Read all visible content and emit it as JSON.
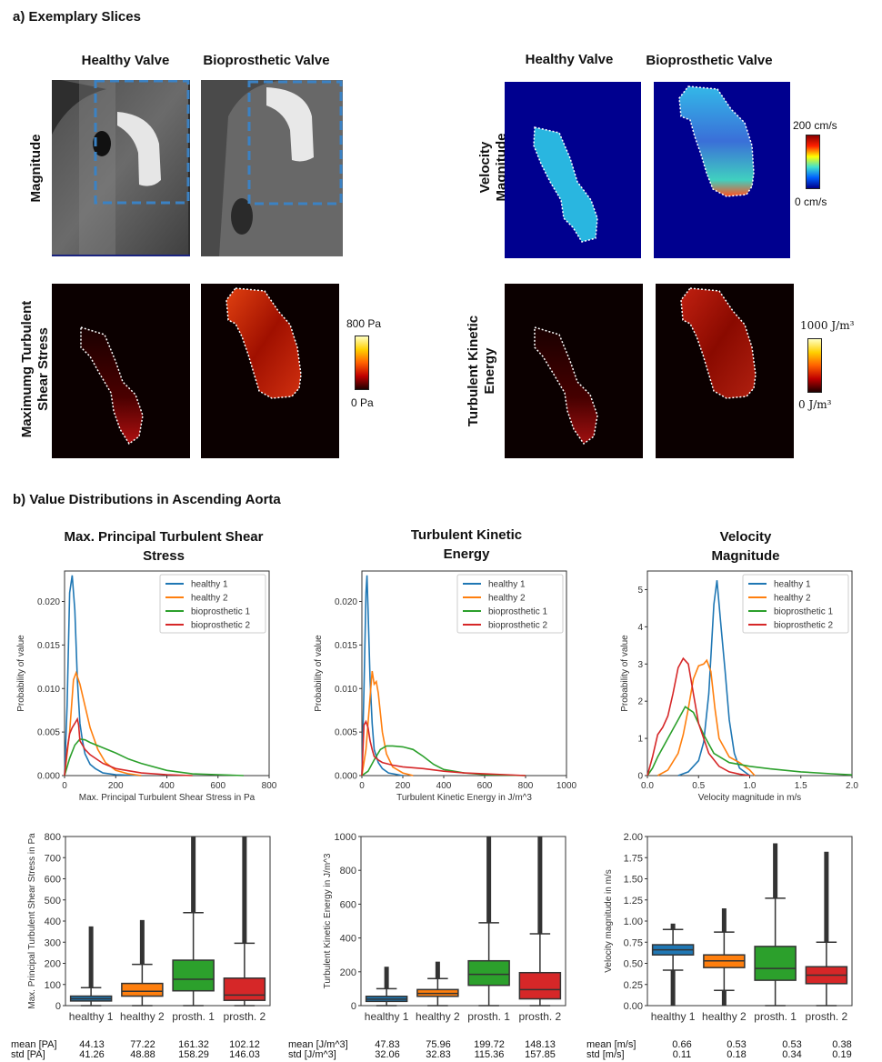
{
  "section_a": {
    "title": "a) Exemplary Slices",
    "col_healthy": "Healthy Valve",
    "col_bioprosthetic": "Bioprosthetic Valve",
    "row_magnitude": "Magnitude",
    "row_velocity": "Velocity Magnitude",
    "row_velocity_l1": "Velocity",
    "row_velocity_l2": "Magnitude",
    "row_shear_l1": "Maximumg  Turbulent",
    "row_shear_l2": "Shear Stress",
    "row_tke_l1": "Turbulent Kinetic",
    "row_tke_l2": "Energy",
    "cb_velocity_max": "200 cm/s",
    "cb_velocity_min": "0 cm/s",
    "cb_shear_max": "800 Pa",
    "cb_shear_min": "0 Pa",
    "cb_tke_max": "1000 J/m³",
    "cb_tke_min": "0 J/m³"
  },
  "section_b": {
    "title": "b) Value Distributions in Ascending Aorta"
  },
  "colors": {
    "healthy1": "#1f77b4",
    "healthy2": "#ff7f0e",
    "bioprosthetic1": "#2ca02c",
    "bioprosthetic2": "#d62728"
  },
  "chart_data": [
    {
      "type": "line",
      "title": "Max. Principal Turbulent Shear Stress",
      "xlabel": "Max. Principal Turbulent Shear Stress in Pa",
      "ylabel": "Probability of value",
      "xlim": [
        0,
        800
      ],
      "ylim": [
        0,
        0.0235
      ],
      "xticks": [
        0,
        200,
        400,
        600,
        800
      ],
      "yticks": [
        0.0,
        0.005,
        0.01,
        0.015,
        0.02
      ],
      "ytick_labels": [
        "0.000",
        "0.005",
        "0.010",
        "0.015",
        "0.020"
      ],
      "legend": "top-right",
      "series": [
        {
          "name": "healthy 1",
          "x": [
            0,
            10,
            20,
            30,
            40,
            50,
            60,
            70,
            80,
            100,
            120,
            150,
            200,
            300
          ],
          "y": [
            0.0,
            0.008,
            0.021,
            0.023,
            0.019,
            0.011,
            0.006,
            0.004,
            0.0025,
            0.0013,
            0.0008,
            0.0003,
            0.0001,
            0.0
          ]
        },
        {
          "name": "healthy 2",
          "x": [
            0,
            20,
            35,
            45,
            60,
            80,
            100,
            130,
            160,
            200,
            250,
            300
          ],
          "y": [
            0.0,
            0.005,
            0.011,
            0.0118,
            0.0105,
            0.008,
            0.0055,
            0.003,
            0.0015,
            0.0006,
            0.0002,
            0.0
          ]
        },
        {
          "name": "bioprosthetic 1",
          "x": [
            0,
            20,
            40,
            60,
            80,
            100,
            150,
            200,
            250,
            300,
            400,
            500,
            600,
            700
          ],
          "y": [
            0.0,
            0.002,
            0.0035,
            0.0042,
            0.0041,
            0.0038,
            0.0032,
            0.0026,
            0.0019,
            0.0014,
            0.0006,
            0.0002,
            0.0001,
            0.0
          ]
        },
        {
          "name": "bioprosthetic 2",
          "x": [
            0,
            10,
            20,
            30,
            40,
            50,
            55,
            60,
            70,
            80,
            100,
            150,
            200,
            300,
            400,
            500
          ],
          "y": [
            0.0,
            0.003,
            0.0048,
            0.0055,
            0.006,
            0.0065,
            0.0058,
            0.004,
            0.0035,
            0.003,
            0.0024,
            0.0014,
            0.0008,
            0.0003,
            0.0001,
            0.0
          ]
        }
      ]
    },
    {
      "type": "line",
      "title": "Turbulent Kinetic Energy",
      "xlabel": "Turbulent Kinetic Energy in J/m^3",
      "ylabel": "Probability of value",
      "xlim": [
        0,
        1000
      ],
      "ylim": [
        0,
        0.0235
      ],
      "xticks": [
        0,
        200,
        400,
        600,
        800,
        1000
      ],
      "yticks": [
        0.0,
        0.005,
        0.01,
        0.015,
        0.02
      ],
      "ytick_labels": [
        "0.000",
        "0.005",
        "0.010",
        "0.015",
        "0.020"
      ],
      "legend": "top-right",
      "series": [
        {
          "name": "healthy 1",
          "x": [
            0,
            10,
            20,
            25,
            30,
            40,
            50,
            60,
            80,
            100,
            130,
            200
          ],
          "y": [
            0.0,
            0.01,
            0.021,
            0.023,
            0.019,
            0.011,
            0.006,
            0.003,
            0.0015,
            0.0008,
            0.0003,
            0.0
          ]
        },
        {
          "name": "healthy 2",
          "x": [
            0,
            20,
            40,
            50,
            60,
            70,
            80,
            100,
            120,
            150,
            200,
            250
          ],
          "y": [
            0.0,
            0.003,
            0.009,
            0.012,
            0.0105,
            0.0108,
            0.0095,
            0.005,
            0.0025,
            0.001,
            0.0003,
            0.0
          ]
        },
        {
          "name": "bioprosthetic 1",
          "x": [
            0,
            30,
            60,
            90,
            120,
            150,
            200,
            250,
            300,
            350,
            400,
            500,
            600,
            700,
            800
          ],
          "y": [
            0.0,
            0.0005,
            0.0018,
            0.003,
            0.0034,
            0.0034,
            0.0033,
            0.003,
            0.0022,
            0.0013,
            0.0007,
            0.0003,
            0.0001,
            5e-05,
            0.0
          ]
        },
        {
          "name": "bioprosthetic 2",
          "x": [
            0,
            10,
            20,
            30,
            40,
            50,
            60,
            80,
            100,
            150,
            200,
            300,
            400,
            500,
            600,
            700,
            800
          ],
          "y": [
            0.0,
            0.0058,
            0.0062,
            0.0055,
            0.004,
            0.003,
            0.0022,
            0.0018,
            0.0015,
            0.0012,
            0.001,
            0.0008,
            0.0005,
            0.0003,
            0.0002,
            0.0001,
            0.0
          ]
        }
      ]
    },
    {
      "type": "line",
      "title": "Velocity Magnitude",
      "xlabel": "Velocity magnitude in m/s",
      "ylabel": "Probability of value",
      "xlim": [
        0,
        2.0
      ],
      "ylim": [
        0,
        5.5
      ],
      "xticks": [
        0.0,
        0.5,
        1.0,
        1.5,
        2.0
      ],
      "xtick_labels": [
        "0.0",
        "0.5",
        "1.0",
        "1.5",
        "2.0"
      ],
      "yticks": [
        0,
        1,
        2,
        3,
        4,
        5
      ],
      "legend": "top-right",
      "series": [
        {
          "name": "healthy 1",
          "x": [
            0.3,
            0.4,
            0.5,
            0.55,
            0.6,
            0.65,
            0.68,
            0.72,
            0.76,
            0.8,
            0.85,
            0.9,
            1.0
          ],
          "y": [
            0.0,
            0.1,
            0.4,
            0.9,
            2.2,
            4.6,
            5.25,
            4.0,
            2.8,
            1.5,
            0.6,
            0.2,
            0.0
          ]
        },
        {
          "name": "healthy 2",
          "x": [
            0.1,
            0.2,
            0.3,
            0.35,
            0.4,
            0.45,
            0.5,
            0.55,
            0.58,
            0.62,
            0.66,
            0.7,
            0.8,
            0.9,
            1.0,
            1.05
          ],
          "y": [
            0.0,
            0.15,
            0.6,
            1.1,
            1.8,
            2.6,
            2.95,
            3.0,
            3.1,
            2.8,
            1.8,
            1.0,
            0.5,
            0.35,
            0.15,
            0.0
          ]
        },
        {
          "name": "bioprosthetic 1",
          "x": [
            0.0,
            0.05,
            0.1,
            0.2,
            0.3,
            0.37,
            0.45,
            0.55,
            0.65,
            0.8,
            1.0,
            1.2,
            1.5,
            1.8,
            2.0
          ],
          "y": [
            0.0,
            0.2,
            0.5,
            1.0,
            1.5,
            1.85,
            1.7,
            1.1,
            0.6,
            0.35,
            0.25,
            0.18,
            0.1,
            0.05,
            0.02
          ]
        },
        {
          "name": "bioprosthetic 2",
          "x": [
            0.0,
            0.05,
            0.1,
            0.15,
            0.2,
            0.25,
            0.3,
            0.35,
            0.4,
            0.45,
            0.5,
            0.6,
            0.7,
            0.8,
            0.9,
            1.0
          ],
          "y": [
            0.0,
            0.5,
            1.1,
            1.3,
            1.6,
            2.2,
            2.9,
            3.15,
            3.0,
            2.2,
            1.4,
            0.6,
            0.25,
            0.1,
            0.04,
            0.0
          ]
        }
      ]
    },
    {
      "type": "box",
      "ylabel": "Max. Principal Turbulent Shear Stress in Pa",
      "ylim": [
        0,
        800
      ],
      "yticks": [
        0,
        100,
        200,
        300,
        400,
        500,
        600,
        700,
        800
      ],
      "categories": [
        "healthy 1",
        "healthy 2",
        "prosth. 1",
        "prosth. 2"
      ],
      "boxes": [
        {
          "q1": 22,
          "median": 32,
          "q3": 45,
          "whisker_low": 0,
          "whisker_high": 85,
          "outlier_max": 375
        },
        {
          "q1": 45,
          "median": 68,
          "q3": 105,
          "whisker_low": 0,
          "whisker_high": 195,
          "outlier_max": 405
        },
        {
          "q1": 70,
          "median": 125,
          "q3": 215,
          "whisker_low": 0,
          "whisker_high": 440,
          "outlier_max": 800
        },
        {
          "q1": 25,
          "median": 50,
          "q3": 130,
          "whisker_low": 0,
          "whisker_high": 295,
          "outlier_max": 800
        }
      ],
      "stats_labels": [
        "mean [PA]",
        "std [PA]"
      ],
      "means": [
        "44.13",
        "77.22",
        "161.32",
        "102.12"
      ],
      "stds": [
        "41.26",
        "48.88",
        "158.29",
        "146.03"
      ]
    },
    {
      "type": "box",
      "ylabel": "Turbulent Kinetic Energy in J/m^3",
      "ylim": [
        0,
        1000
      ],
      "yticks": [
        0,
        200,
        400,
        600,
        800,
        1000
      ],
      "categories": [
        "healthy 1",
        "healthy 2",
        "prosth. 1",
        "prosth. 2"
      ],
      "boxes": [
        {
          "q1": 25,
          "median": 38,
          "q3": 55,
          "whisker_low": 0,
          "whisker_high": 100,
          "outlier_max": 230
        },
        {
          "q1": 55,
          "median": 72,
          "q3": 95,
          "whisker_low": 0,
          "whisker_high": 160,
          "outlier_max": 260
        },
        {
          "q1": 120,
          "median": 185,
          "q3": 265,
          "whisker_low": 0,
          "whisker_high": 490,
          "outlier_max": 1000
        },
        {
          "q1": 40,
          "median": 95,
          "q3": 195,
          "whisker_low": 0,
          "whisker_high": 425,
          "outlier_max": 1000
        }
      ],
      "stats_labels": [
        "mean [J/m^3]",
        "std [J/m^3]"
      ],
      "means": [
        "47.83",
        "75.96",
        "199.72",
        "148.13"
      ],
      "stds": [
        "32.06",
        "32.83",
        "115.36",
        "157.85"
      ]
    },
    {
      "type": "box",
      "ylabel": "Velocity magnitude in m/s",
      "ylim": [
        0,
        2.0
      ],
      "yticks": [
        0.0,
        0.25,
        0.5,
        0.75,
        1.0,
        1.25,
        1.5,
        1.75,
        2.0
      ],
      "ytick_labels": [
        "0.00",
        "0.25",
        "0.50",
        "0.75",
        "1.00",
        "1.25",
        "1.50",
        "1.75",
        "2.00"
      ],
      "categories": [
        "healthy 1",
        "healthy 2",
        "prosth. 1",
        "prosth. 2"
      ],
      "boxes": [
        {
          "q1": 0.6,
          "median": 0.66,
          "q3": 0.72,
          "whisker_low": 0.42,
          "whisker_high": 0.9,
          "outlier_min": 0.0,
          "outlier_max": 0.97
        },
        {
          "q1": 0.45,
          "median": 0.53,
          "q3": 0.6,
          "whisker_low": 0.18,
          "whisker_high": 0.87,
          "outlier_min": 0.0,
          "outlier_max": 1.15
        },
        {
          "q1": 0.3,
          "median": 0.44,
          "q3": 0.7,
          "whisker_low": 0.0,
          "whisker_high": 1.27,
          "outlier_max": 1.92
        },
        {
          "q1": 0.26,
          "median": 0.36,
          "q3": 0.46,
          "whisker_low": 0.0,
          "whisker_high": 0.75,
          "outlier_max": 1.82
        }
      ],
      "stats_labels": [
        "mean [m/s]",
        "std [m/s]"
      ],
      "means": [
        "0.66",
        "0.53",
        "0.53",
        "0.38"
      ],
      "stds": [
        "0.11",
        "0.18",
        "0.34",
        "0.19"
      ]
    }
  ]
}
